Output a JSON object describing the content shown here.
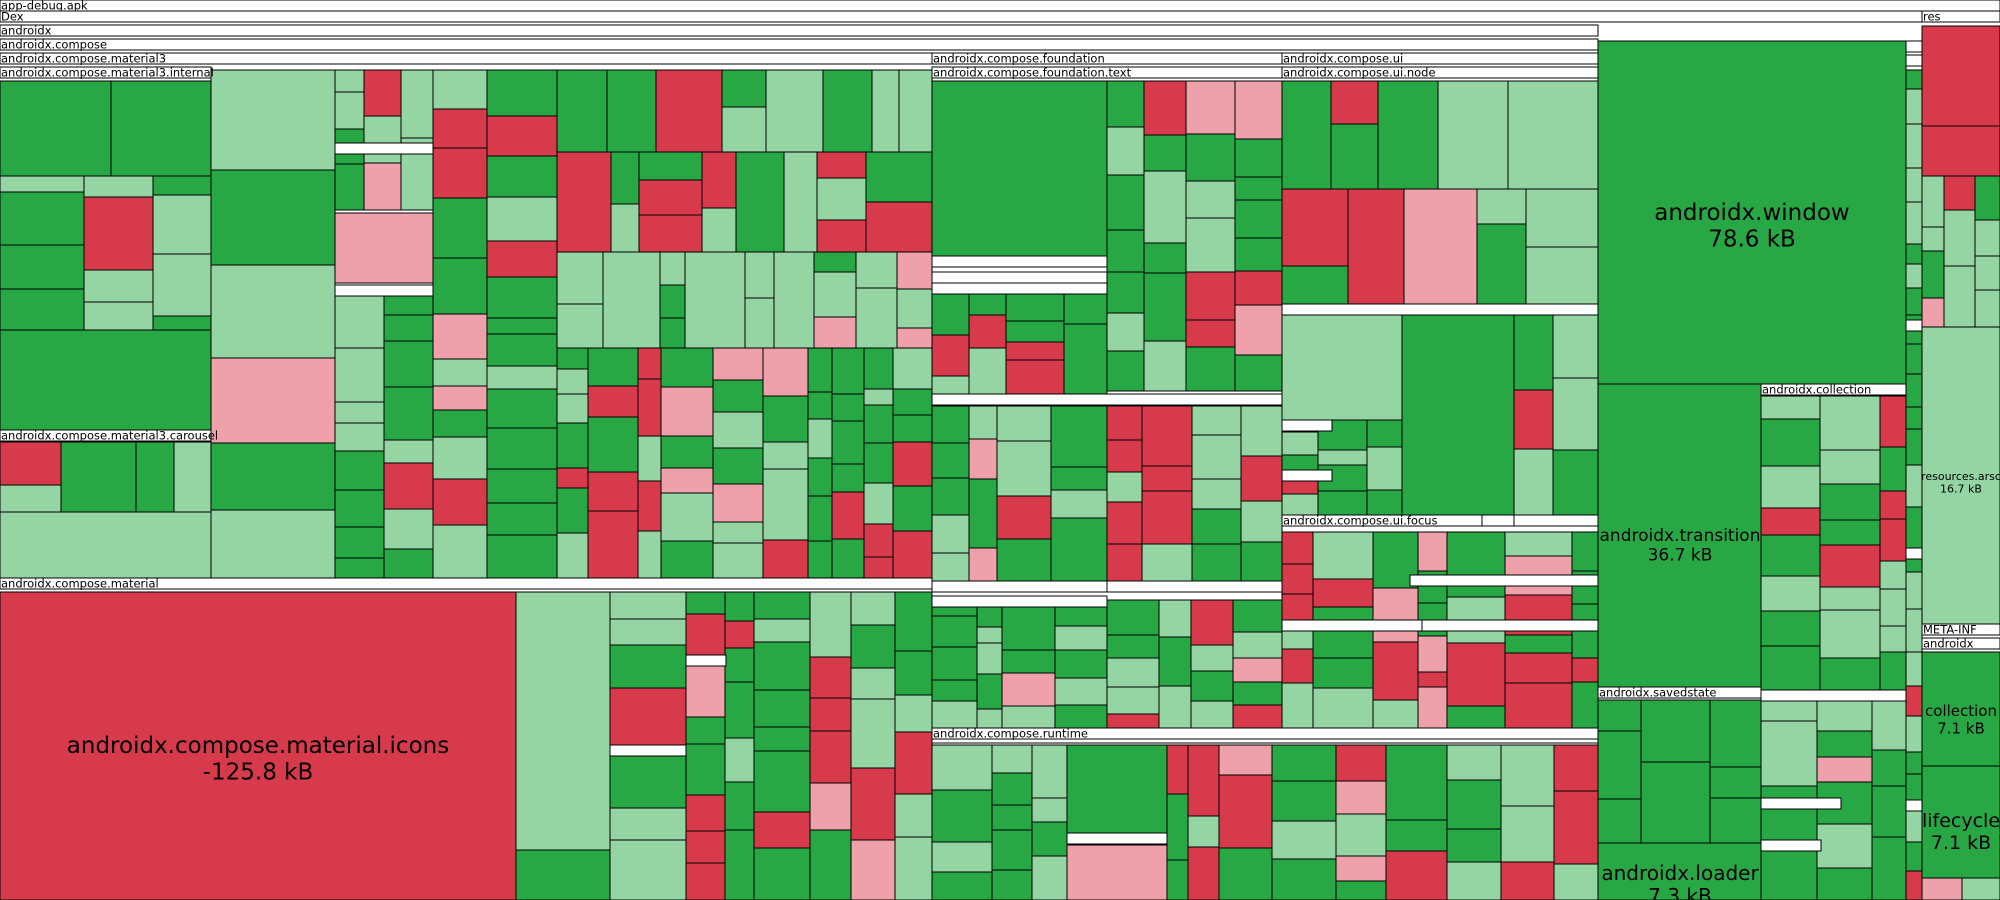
{
  "chart_data": {
    "type": "treemap",
    "title": "app-debug.apk",
    "colors": {
      "strong_green": "#28a745",
      "light_green": "#95d5a3",
      "strong_red": "#d73a4a",
      "light_red": "#eea1ab",
      "header": "#ffffff",
      "border": "#000000"
    },
    "group_labels": [
      "app-debug.apk",
      "Dex",
      "androidx",
      "androidx.compose",
      "androidx.compose.material3",
      "androidx.compose.material3.internal",
      "androidx.compose.material3.carousel",
      "androidx.compose.material",
      "androidx.compose.foundation",
      "androidx.compose.foundation.text",
      "androidx.compose.ui",
      "androidx.compose.ui.node",
      "androidx.compose.ui.focus",
      "androidx.compose.runtime",
      "androidx.collection",
      "androidx.savedstate",
      "res",
      "resources.arsc",
      "META-INF",
      "androidx"
    ],
    "labeled_nodes": [
      {
        "name": "androidx.compose.material.icons",
        "size": "-125.8 kB",
        "value_kb": -125.8,
        "color": "strong_red"
      },
      {
        "name": "androidx.window",
        "size": "78.6 kB",
        "value_kb": 78.6,
        "color": "strong_green"
      },
      {
        "name": "androidx.transition",
        "size": "36.7 kB",
        "value_kb": 36.7,
        "color": "strong_green"
      },
      {
        "name": "resources.arsc",
        "size": "16.7 kB",
        "value_kb": 16.7,
        "color": "light_green"
      },
      {
        "name": "androidx.loader",
        "size": "7.3 kB",
        "value_kb": 7.3,
        "color": "strong_green"
      },
      {
        "name": "collection",
        "size": "7.1 kB",
        "value_kb": 7.1,
        "color": "strong_green"
      },
      {
        "name": "lifecycle",
        "size": "7.1 kB",
        "value_kb": 7.1,
        "color": "strong_green"
      }
    ]
  }
}
